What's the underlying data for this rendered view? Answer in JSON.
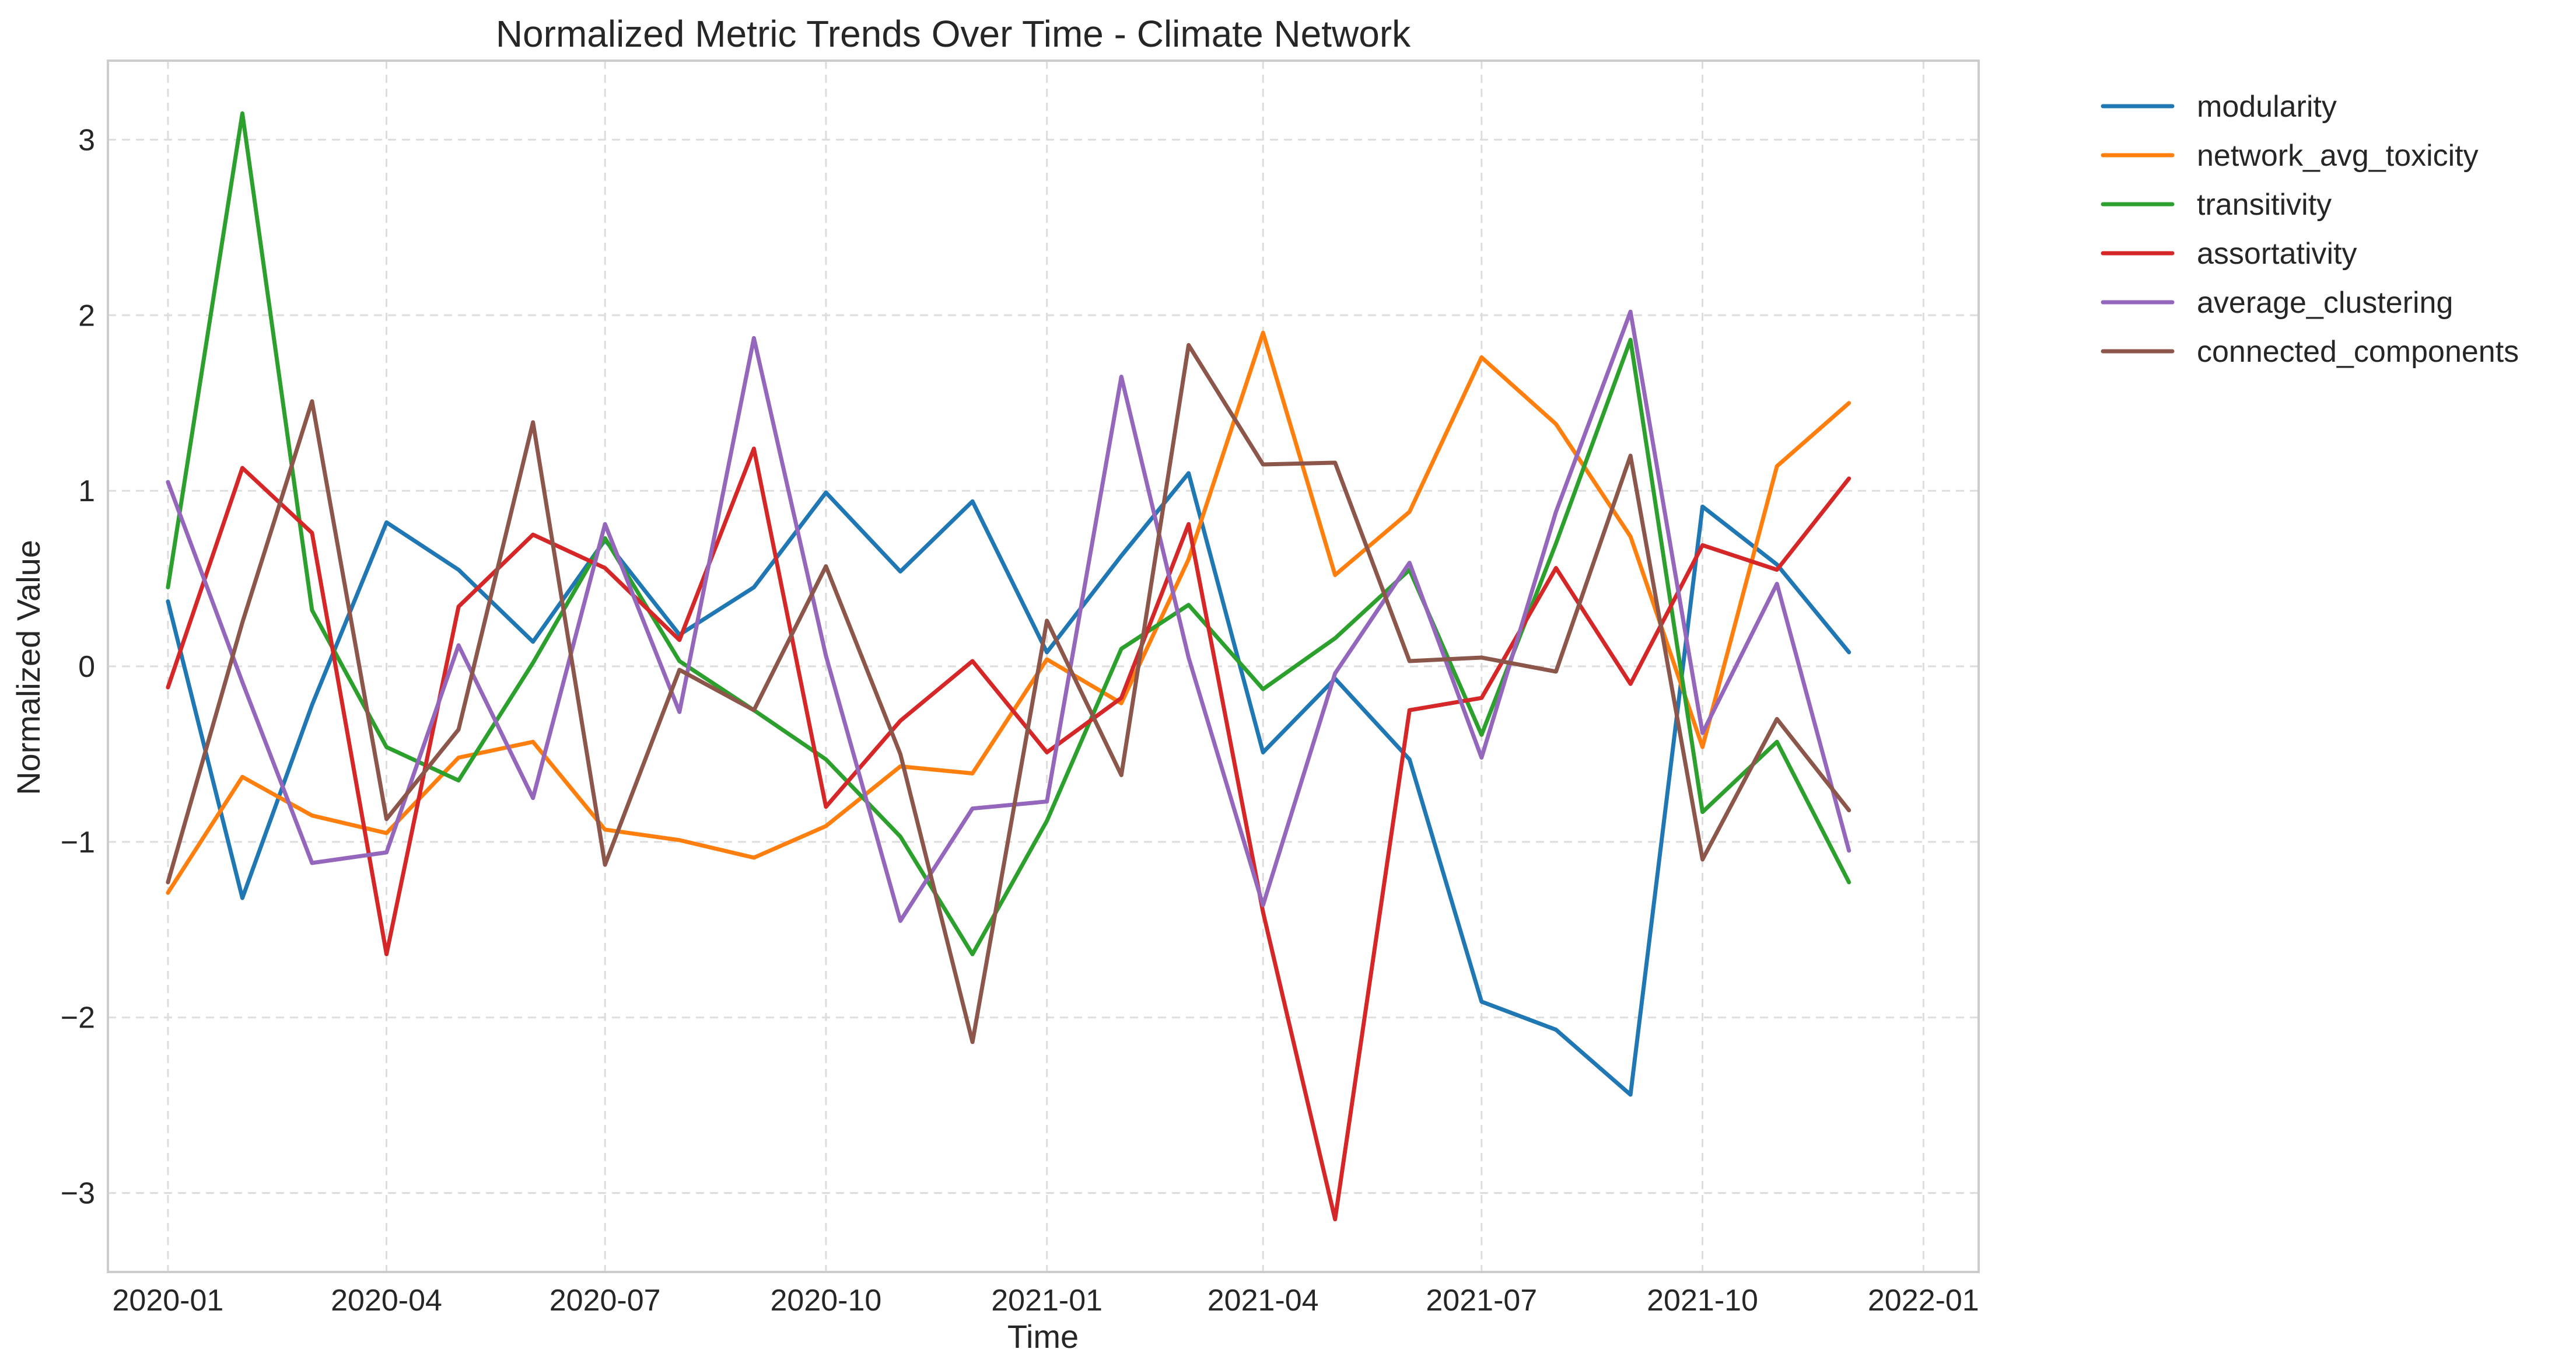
{
  "chart_data": {
    "type": "line",
    "title": "Normalized Metric Trends Over Time - Climate Network",
    "xlabel": "Time",
    "ylabel": "Normalized Value",
    "x": [
      "2020-01",
      "2020-02",
      "2020-03",
      "2020-04",
      "2020-05",
      "2020-06",
      "2020-07",
      "2020-08",
      "2020-09",
      "2020-10",
      "2020-11",
      "2020-12",
      "2021-01",
      "2021-02",
      "2021-03",
      "2021-04",
      "2021-05",
      "2021-06",
      "2021-07",
      "2021-08",
      "2021-09",
      "2021-10",
      "2021-11",
      "2021-12"
    ],
    "xlim": [
      "2019-12-07",
      "2022-01-24"
    ],
    "ylim": [
      -3.45,
      3.45
    ],
    "x_ticks": [
      "2020-01",
      "2020-04",
      "2020-07",
      "2020-10",
      "2021-01",
      "2021-04",
      "2021-07",
      "2021-10",
      "2022-01"
    ],
    "y_ticks": [
      -3,
      -2,
      -1,
      0,
      1,
      2,
      3
    ],
    "y_tick_labels": [
      "−3",
      "−2",
      "−1",
      "0",
      "1",
      "2",
      "3"
    ],
    "grid": true,
    "legend_position": "outside-top-right",
    "series": [
      {
        "name": "modularity",
        "color": "#1f77b4",
        "values": [
          0.37,
          -1.32,
          -0.22,
          0.82,
          0.55,
          0.14,
          0.72,
          0.18,
          0.45,
          0.99,
          0.54,
          0.94,
          0.08,
          0.63,
          1.1,
          -0.49,
          -0.07,
          -0.53,
          -1.91,
          -2.07,
          -2.44,
          0.91,
          0.58,
          0.08
        ]
      },
      {
        "name": "network_avg_toxicity",
        "color": "#ff7f0e",
        "values": [
          -1.29,
          -0.63,
          -0.85,
          -0.95,
          -0.52,
          -0.43,
          -0.93,
          -0.99,
          -1.09,
          -0.91,
          -0.57,
          -0.61,
          0.04,
          -0.21,
          0.61,
          1.9,
          0.52,
          0.88,
          1.76,
          1.38,
          0.74,
          -0.46,
          1.14,
          1.5
        ]
      },
      {
        "name": "transitivity",
        "color": "#2ca02c",
        "values": [
          0.45,
          3.15,
          0.32,
          -0.46,
          -0.65,
          0.02,
          0.73,
          0.03,
          -0.25,
          -0.53,
          -0.97,
          -1.64,
          -0.88,
          0.1,
          0.35,
          -0.13,
          0.16,
          0.55,
          -0.39,
          0.7,
          1.86,
          -0.83,
          -0.43,
          -1.23
        ]
      },
      {
        "name": "assortativity",
        "color": "#d62728",
        "values": [
          -0.12,
          1.13,
          0.76,
          -1.64,
          0.34,
          0.75,
          0.56,
          0.15,
          1.24,
          -0.8,
          -0.31,
          0.03,
          -0.49,
          -0.18,
          0.81,
          -1.4,
          -3.15,
          -0.25,
          -0.18,
          0.56,
          -0.1,
          0.69,
          0.55,
          1.07
        ]
      },
      {
        "name": "average_clustering",
        "color": "#9467bd",
        "values": [
          1.05,
          -0.09,
          -1.12,
          -1.06,
          0.12,
          -0.75,
          0.81,
          -0.26,
          1.87,
          0.06,
          -1.45,
          -0.81,
          -0.77,
          1.65,
          0.05,
          -1.36,
          -0.04,
          0.59,
          -0.52,
          0.88,
          2.02,
          -0.38,
          0.47,
          -1.05
        ]
      },
      {
        "name": "connected_components",
        "color": "#8c564b",
        "values": [
          -1.23,
          0.25,
          1.51,
          -0.87,
          -0.36,
          1.39,
          -1.13,
          -0.02,
          -0.25,
          0.57,
          -0.5,
          -2.14,
          0.26,
          -0.62,
          1.83,
          1.15,
          1.16,
          0.03,
          0.05,
          -0.03,
          1.2,
          -1.1,
          -0.3,
          -0.82
        ]
      }
    ]
  }
}
